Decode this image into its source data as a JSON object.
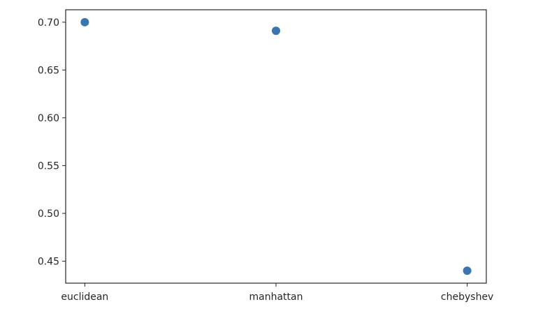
{
  "chart_data": {
    "type": "scatter",
    "categories": [
      "euclidean",
      "manhattan",
      "chebyshev"
    ],
    "values": [
      0.7,
      0.691,
      0.44
    ],
    "yticks": [
      0.45,
      0.5,
      0.55,
      0.6,
      0.65,
      0.7
    ],
    "ytick_labels": [
      "0.45",
      "0.50",
      "0.55",
      "0.60",
      "0.65",
      "0.70"
    ],
    "ylim": [
      0.427,
      0.713
    ],
    "grid": false,
    "legend": "none",
    "marker_color": "#3b75af"
  }
}
